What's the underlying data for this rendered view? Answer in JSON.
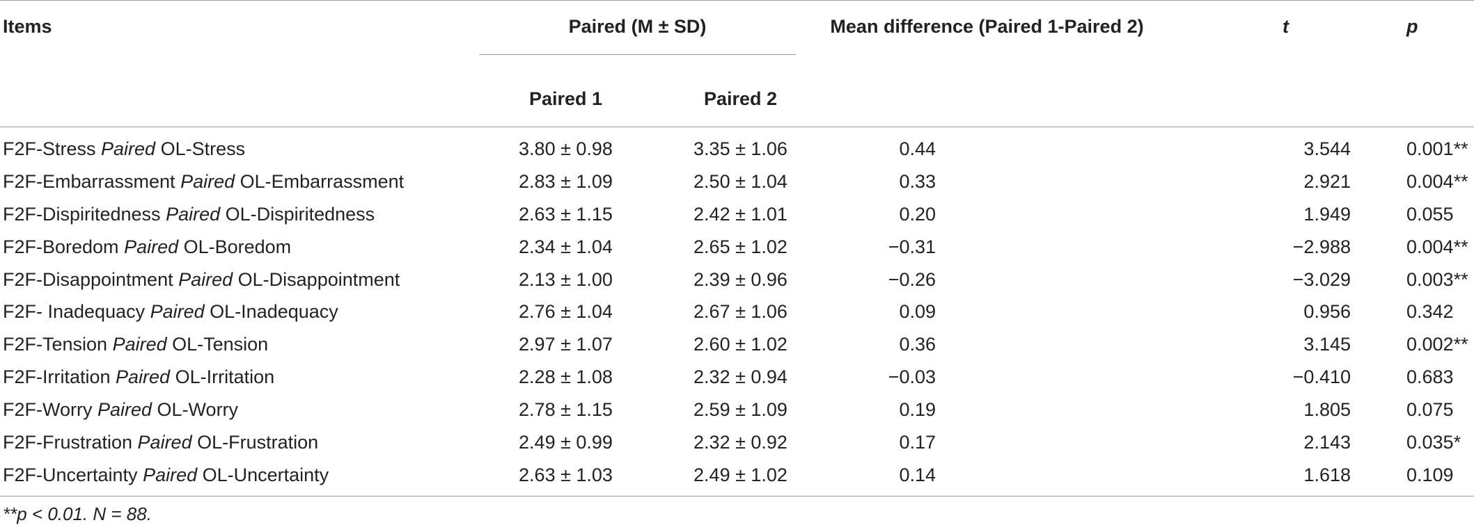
{
  "header": {
    "items": "Items",
    "paired_group": "Paired (M ± SD)",
    "paired1": "Paired 1",
    "paired2": "Paired 2",
    "mean_diff": "Mean difference (Paired 1-Paired 2)",
    "t": "t",
    "p": "p"
  },
  "rows": [
    {
      "left": "F2F-Stress ",
      "mid": "Paired",
      "right": " OL-Stress",
      "p1": "3.80 ± 0.98",
      "p2": "3.35 ± 1.06",
      "md": "0.44",
      "t": "3.544",
      "p": "0.001**"
    },
    {
      "left": "F2F-Embarrassment ",
      "mid": "Paired",
      "right": " OL-Embarrassment",
      "p1": "2.83 ± 1.09",
      "p2": "2.50 ± 1.04",
      "md": "0.33",
      "t": "2.921",
      "p": "0.004**"
    },
    {
      "left": "F2F-Dispiritedness ",
      "mid": "Paired",
      "right": " OL-Dispiritedness",
      "p1": "2.63 ± 1.15",
      "p2": "2.42 ± 1.01",
      "md": "0.20",
      "t": "1.949",
      "p": "0.055"
    },
    {
      "left": "F2F-Boredom ",
      "mid": "Paired",
      "right": " OL-Boredom",
      "p1": "2.34 ± 1.04",
      "p2": "2.65 ± 1.02",
      "md": "−0.31",
      "t": "−2.988",
      "p": "0.004**"
    },
    {
      "left": "F2F-Disappointment ",
      "mid": "Paired",
      "right": " OL-Disappointment",
      "p1": "2.13 ± 1.00",
      "p2": "2.39 ± 0.96",
      "md": "−0.26",
      "t": "−3.029",
      "p": "0.003**"
    },
    {
      "left": "F2F- Inadequacy ",
      "mid": "Paired",
      "right": " OL-Inadequacy",
      "p1": "2.76 ± 1.04",
      "p2": "2.67 ± 1.06",
      "md": "0.09",
      "t": "0.956",
      "p": "0.342"
    },
    {
      "left": "F2F-Tension ",
      "mid": "Paired",
      "right": " OL-Tension",
      "p1": "2.97 ± 1.07",
      "p2": "2.60 ± 1.02",
      "md": "0.36",
      "t": "3.145",
      "p": "0.002**"
    },
    {
      "left": "F2F-Irritation ",
      "mid": "Paired",
      "right": " OL-Irritation",
      "p1": "2.28 ± 1.08",
      "p2": "2.32 ± 0.94",
      "md": "−0.03",
      "t": "−0.410",
      "p": "0.683"
    },
    {
      "left": "F2F-Worry ",
      "mid": "Paired",
      "right": " OL-Worry",
      "p1": "2.78 ± 1.15",
      "p2": "2.59 ± 1.09",
      "md": "0.19",
      "t": "1.805",
      "p": "0.075"
    },
    {
      "left": "F2F-Frustration ",
      "mid": "Paired",
      "right": " OL-Frustration",
      "p1": "2.49 ± 0.99",
      "p2": "2.32 ± 0.92",
      "md": "0.17",
      "t": "2.143",
      "p": "0.035*"
    },
    {
      "left": "F2F-Uncertainty ",
      "mid": "Paired",
      "right": " OL-Uncertainty",
      "p1": "2.63 ± 1.03",
      "p2": "2.49 ± 1.02",
      "md": "0.14",
      "t": "1.618",
      "p": "0.109"
    }
  ],
  "footnote": "**p < 0.01. N = 88."
}
